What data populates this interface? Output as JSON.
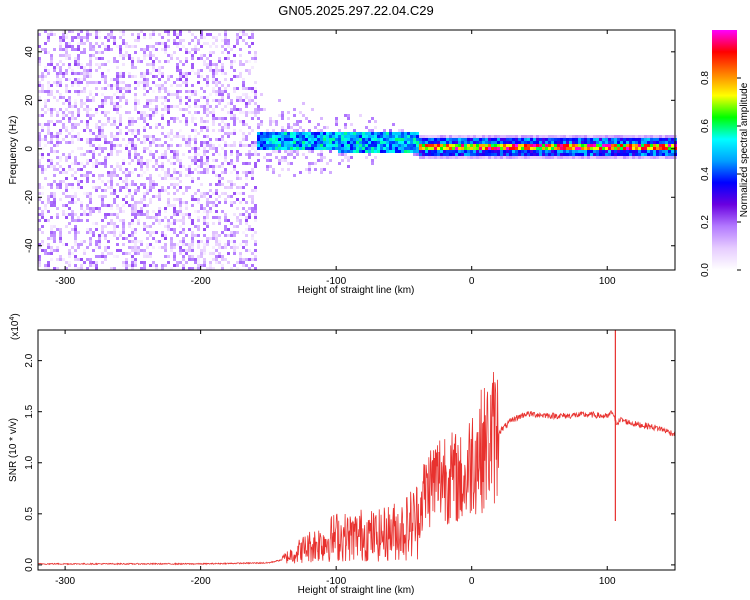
{
  "title": "GN05.2025.297.22.04.C29",
  "chart_data": [
    {
      "type": "heatmap",
      "xlabel": "Height of straight line (km)",
      "ylabel": "Frequency (Hz)",
      "xlim": [
        -320,
        150
      ],
      "ylim": [
        -50,
        49
      ],
      "xticks": [
        -300,
        -200,
        -100,
        0,
        100
      ],
      "yticks": [
        -40,
        -20,
        0,
        20,
        40
      ],
      "colorbar": {
        "label": "Normalized spectral amplitude",
        "range": [
          0,
          1
        ],
        "ticks": [
          "0.0",
          "0.2",
          "0.4",
          "0.6",
          "0.8"
        ],
        "tick_values": [
          0.0,
          0.2,
          0.4,
          0.6,
          0.8
        ],
        "colormap": [
          "#ffffff",
          "#e6ccff",
          "#b37aff",
          "#6a00e0",
          "#0000ff",
          "#00a0ff",
          "#00ffff",
          "#00ff00",
          "#ffff00",
          "#ff8000",
          "#ff0000",
          "#ff00ff"
        ]
      },
      "regions": [
        {
          "x": [
            -320,
            -160
          ],
          "freq_band": [
            -50,
            49
          ],
          "amplitude": [
            0.0,
            0.2
          ],
          "pattern": "scattered"
        },
        {
          "x": [
            -160,
            -40
          ],
          "freq_band": [
            -25,
            25
          ],
          "amplitude": [
            0.2,
            0.6
          ],
          "pattern": "band"
        },
        {
          "x": [
            -40,
            150
          ],
          "freq_band": [
            -2,
            4
          ],
          "amplitude": [
            0.4,
            1.0
          ],
          "pattern": "narrow-band"
        }
      ],
      "colors": {
        "plot_border": "#000000"
      }
    },
    {
      "type": "line",
      "xlabel": "Height of straight line (km)",
      "ylabel": "SNR (10 * v/v)",
      "y_scale_label": "(x10",
      "y_scale_exp": "4",
      "y_scale_close": ")",
      "xlim": [
        -320,
        150
      ],
      "ylim": [
        -0.05,
        2.3
      ],
      "xticks": [
        -300,
        -200,
        -100,
        0,
        100
      ],
      "yticks": [
        0.0,
        0.5,
        1.0,
        1.5,
        2.0
      ],
      "ytick_labels": [
        "0.0",
        "0.5",
        "1.0",
        "1.5",
        "2.0"
      ],
      "series": [
        {
          "color": "#e8312e",
          "x": [
            -320,
            -200,
            -150,
            -140,
            -130,
            -120,
            -110,
            -100,
            -90,
            -80,
            -70,
            -60,
            -50,
            -40,
            -35,
            -30,
            -25,
            -20,
            -15,
            -10,
            -5,
            0,
            5,
            10,
            15,
            20,
            30,
            40,
            50,
            60,
            70,
            80,
            90,
            100,
            104,
            106,
            108,
            110,
            120,
            130,
            140,
            150
          ],
          "y": [
            0.01,
            0.01,
            0.02,
            0.05,
            0.12,
            0.18,
            0.22,
            0.28,
            0.27,
            0.3,
            0.28,
            0.32,
            0.35,
            0.45,
            0.7,
            0.8,
            0.85,
            0.9,
            0.85,
            0.85,
            0.8,
            1.05,
            1.1,
            1.15,
            1.25,
            1.3,
            1.42,
            1.48,
            1.47,
            1.46,
            1.46,
            1.47,
            1.47,
            1.45,
            1.5,
            1.4,
            1.4,
            1.42,
            1.38,
            1.36,
            1.33,
            1.28
          ]
        }
      ],
      "annotations": [
        {
          "x": 106,
          "y_max": 2.3,
          "y_min": 0.43,
          "label": ""
        }
      ]
    }
  ]
}
